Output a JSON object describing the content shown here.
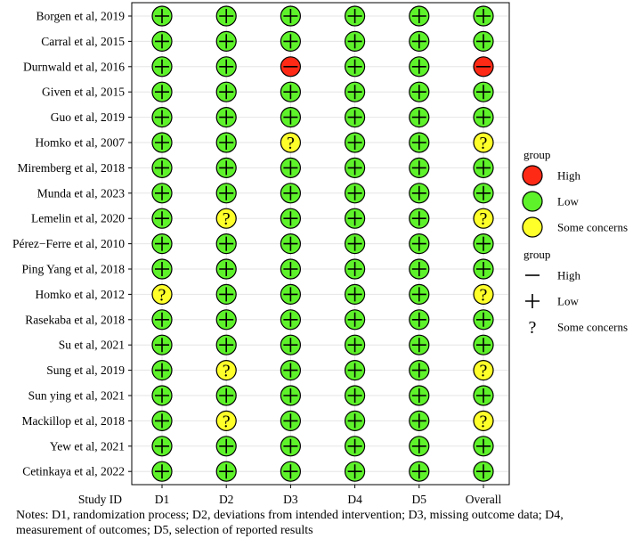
{
  "chart_data": {
    "type": "traffic-light",
    "y_axis_label": "Study ID",
    "columns": [
      "D1",
      "D2",
      "D3",
      "D4",
      "D5",
      "Overall"
    ],
    "studies": [
      {
        "name": "Borgen et al, 2019",
        "judgements": [
          "Low",
          "Low",
          "Low",
          "Low",
          "Low",
          "Low"
        ]
      },
      {
        "name": "Carral et al, 2015",
        "judgements": [
          "Low",
          "Low",
          "Low",
          "Low",
          "Low",
          "Low"
        ]
      },
      {
        "name": "Durnwald et al, 2016",
        "judgements": [
          "Low",
          "Low",
          "High",
          "Low",
          "Low",
          "High"
        ]
      },
      {
        "name": "Given et al, 2015",
        "judgements": [
          "Low",
          "Low",
          "Low",
          "Low",
          "Low",
          "Low"
        ]
      },
      {
        "name": "Guo et al, 2019",
        "judgements": [
          "Low",
          "Low",
          "Low",
          "Low",
          "Low",
          "Low"
        ]
      },
      {
        "name": "Homko et al, 2007",
        "judgements": [
          "Low",
          "Low",
          "Some concerns",
          "Low",
          "Low",
          "Some concerns"
        ]
      },
      {
        "name": "Miremberg et al, 2018",
        "judgements": [
          "Low",
          "Low",
          "Low",
          "Low",
          "Low",
          "Low"
        ]
      },
      {
        "name": "Munda et al, 2023",
        "judgements": [
          "Low",
          "Low",
          "Low",
          "Low",
          "Low",
          "Low"
        ]
      },
      {
        "name": "Lemelin et al, 2020",
        "judgements": [
          "Low",
          "Some concerns",
          "Low",
          "Low",
          "Low",
          "Some concerns"
        ]
      },
      {
        "name": "Pérez−Ferre et al, 2010",
        "judgements": [
          "Low",
          "Low",
          "Low",
          "Low",
          "Low",
          "Low"
        ]
      },
      {
        "name": "Ping Yang et al, 2018",
        "judgements": [
          "Low",
          "Low",
          "Low",
          "Low",
          "Low",
          "Low"
        ]
      },
      {
        "name": "Homko et al, 2012",
        "judgements": [
          "Some concerns",
          "Low",
          "Low",
          "Low",
          "Low",
          "Some concerns"
        ]
      },
      {
        "name": "Rasekaba et al, 2018",
        "judgements": [
          "Low",
          "Low",
          "Low",
          "Low",
          "Low",
          "Low"
        ]
      },
      {
        "name": "Su et al, 2021",
        "judgements": [
          "Low",
          "Low",
          "Low",
          "Low",
          "Low",
          "Low"
        ]
      },
      {
        "name": "Sung et al, 2019",
        "judgements": [
          "Low",
          "Some concerns",
          "Low",
          "Low",
          "Low",
          "Some concerns"
        ]
      },
      {
        "name": "Sun ying et al, 2021",
        "judgements": [
          "Low",
          "Low",
          "Low",
          "Low",
          "Low",
          "Low"
        ]
      },
      {
        "name": "Mackillop et al, 2018",
        "judgements": [
          "Low",
          "Some concerns",
          "Low",
          "Low",
          "Low",
          "Some concerns"
        ]
      },
      {
        "name": "Yew et al, 2021",
        "judgements": [
          "Low",
          "Low",
          "Low",
          "Low",
          "Low",
          "Low"
        ]
      },
      {
        "name": "Cetinkaya et al, 2022",
        "judgements": [
          "Low",
          "Low",
          "Low",
          "Low",
          "Low",
          "Low"
        ]
      }
    ],
    "legend_color": {
      "title": "group",
      "entries": [
        {
          "label": "High",
          "color": "#ff2a16"
        },
        {
          "label": "Low",
          "color": "#5ef22a"
        },
        {
          "label": "Some concerns",
          "color": "#ffff2a"
        }
      ]
    },
    "legend_shape": {
      "title": "group",
      "entries": [
        {
          "label": "High",
          "symbol": "minus"
        },
        {
          "label": "Low",
          "symbol": "plus"
        },
        {
          "label": "Some concerns",
          "symbol": "question"
        }
      ]
    }
  },
  "notes": "Notes: D1, randomization process; D2, deviations from intended intervention;  D3, missing outcome data; D4, measurement of outcomes; D5, selection of reported results"
}
